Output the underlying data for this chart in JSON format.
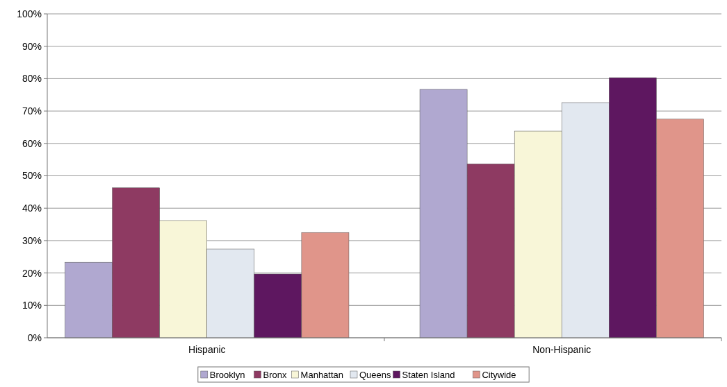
{
  "chart_data": {
    "type": "bar",
    "categories": [
      "Hispanic",
      "Non-Hispanic"
    ],
    "series": [
      {
        "name": "Brooklyn",
        "color": "#b0a8d0",
        "values": [
          23.3,
          76.7
        ]
      },
      {
        "name": "Bronx",
        "color": "#8e3a62",
        "values": [
          46.3,
          53.7
        ]
      },
      {
        "name": "Manhattan",
        "color": "#f8f6d8",
        "values": [
          36.2,
          63.8
        ]
      },
      {
        "name": "Queens",
        "color": "#e2e8f0",
        "values": [
          27.4,
          72.6
        ]
      },
      {
        "name": "Staten Island",
        "color": "#5e1760",
        "values": [
          19.7,
          80.3
        ]
      },
      {
        "name": "Citywide",
        "color": "#e0958a",
        "values": [
          32.5,
          67.5
        ]
      }
    ],
    "ylim": [
      0,
      100
    ],
    "yticks": [
      {
        "value": 0,
        "label": "0%"
      },
      {
        "value": 10,
        "label": "10%"
      },
      {
        "value": 20,
        "label": "20%"
      },
      {
        "value": 30,
        "label": "30%"
      },
      {
        "value": 40,
        "label": "40%"
      },
      {
        "value": 50,
        "label": "50%"
      },
      {
        "value": 60,
        "label": "60%"
      },
      {
        "value": 70,
        "label": "70%"
      },
      {
        "value": 80,
        "label": "80%"
      },
      {
        "value": 90,
        "label": "90%"
      },
      {
        "value": 100,
        "label": "100%"
      }
    ],
    "grid": "y",
    "legend": "bottom"
  }
}
